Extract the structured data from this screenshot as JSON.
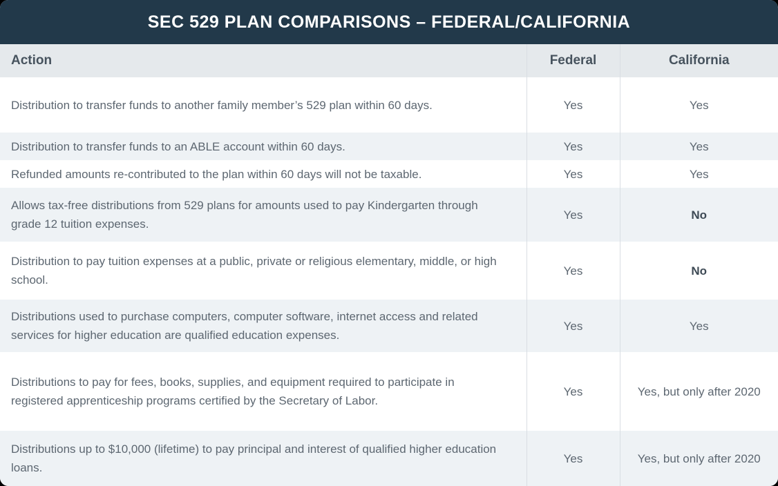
{
  "title": "SEC 529 PLAN COMPARISONS – FEDERAL/CALIFORNIA",
  "colors": {
    "page_background": "#000000",
    "title_bar": "#22394a",
    "title_text": "#ffffff",
    "header_row_bg": "#e5e9ec",
    "header_text": "#47535e",
    "row_white": "#ffffff",
    "row_stripe": "#eef2f5",
    "body_text": "#5d6771",
    "emphasis_text": "#3e4a55",
    "divider": "#d9dee3"
  },
  "table": {
    "columns": [
      "Action",
      "Federal",
      "California"
    ],
    "rows": [
      {
        "action": "Distribution to transfer funds to another family member’s 529 plan within 60 days.",
        "federal": "Yes",
        "california": "Yes",
        "california_emphasis": false
      },
      {
        "action": "Distribution to transfer funds to an ABLE account within 60 days.",
        "federal": "Yes",
        "california": "Yes",
        "california_emphasis": false
      },
      {
        "action": "Refunded amounts re-contributed to the plan within 60 days will not be taxable.",
        "federal": "Yes",
        "california": "Yes",
        "california_emphasis": false
      },
      {
        "action": "Allows tax-free distributions from 529 plans for amounts used to pay Kindergarten through grade 12 tuition expenses.",
        "federal": "Yes",
        "california": "No",
        "california_emphasis": true
      },
      {
        "action": "Distribution to pay tuition expenses at a public, private or religious elementary, middle, or high school.",
        "federal": "Yes",
        "california": "No",
        "california_emphasis": true
      },
      {
        "action": "Distributions used to purchase computers, computer software, internet access and related services for higher education are qualified education expenses.",
        "federal": "Yes",
        "california": "Yes",
        "california_emphasis": false
      },
      {
        "action": "Distributions to pay for fees, books, supplies, and equipment required to participate in registered apprenticeship programs certified by the Secretary of Labor.",
        "federal": "Yes",
        "california": "Yes, but only after 2020",
        "california_emphasis": false
      },
      {
        "action": "Distributions up to $10,000 (lifetime) to pay principal and interest of qualified higher education loans.",
        "federal": "Yes",
        "california": "Yes, but only after 2020",
        "california_emphasis": false
      }
    ]
  }
}
